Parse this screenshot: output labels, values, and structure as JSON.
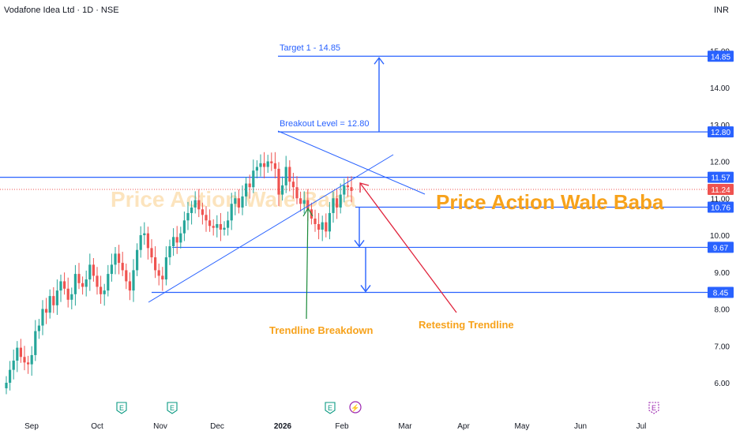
{
  "header": {
    "symbol": "Vodafone Idea Ltd · 1D · NSE",
    "currency": "INR"
  },
  "colors": {
    "up": "#26a69a",
    "down": "#ef5350",
    "level": "#2962ff",
    "orange": "#f7a21b",
    "green_arrow": "#1b8a3a",
    "red_arrow": "#e0243c"
  },
  "chart_data": {
    "type": "candlestick",
    "x_labels": [
      "Sep",
      "Oct",
      "Nov",
      "Dec",
      "2026",
      "Feb",
      "Mar",
      "Apr",
      "May",
      "Jun",
      "Jul"
    ],
    "y_ticks": [
      "6.00",
      "7.00",
      "8.00",
      "9.00",
      "10.00",
      "11.00",
      "12.00",
      "13.00",
      "14.00",
      "15.00"
    ],
    "ylim": [
      5.6,
      15.8
    ],
    "grid": false,
    "closes": [
      6.0,
      6.35,
      6.6,
      6.95,
      6.7,
      6.55,
      6.5,
      6.75,
      7.4,
      7.55,
      8.0,
      7.9,
      8.35,
      8.1,
      8.5,
      8.75,
      8.55,
      8.25,
      8.4,
      8.95,
      8.7,
      8.6,
      8.8,
      9.2,
      8.9,
      8.6,
      8.4,
      8.5,
      8.95,
      9.2,
      9.5,
      9.25,
      9.05,
      8.75,
      8.5,
      9.05,
      9.6,
      10.0,
      10.05,
      9.65,
      9.4,
      9.05,
      8.9,
      8.8,
      9.4,
      9.7,
      9.95,
      9.8,
      10.05,
      10.4,
      10.6,
      10.75,
      10.95,
      10.7,
      10.55,
      10.4,
      10.25,
      10.2,
      10.3,
      10.15,
      10.2,
      10.4,
      10.85,
      11.0,
      10.75,
      11.05,
      11.4,
      11.3,
      11.75,
      11.85,
      11.95,
      11.85,
      12.0,
      11.95,
      11.8,
      11.1,
      11.35,
      11.85,
      11.45,
      11.3,
      11.0,
      10.85,
      10.95,
      10.7,
      10.45,
      10.3,
      10.15,
      10.35,
      10.1,
      10.6,
      11.0,
      10.75,
      11.1,
      11.35,
      11.3,
      11.2
    ],
    "annotations": {
      "target_label": "Target 1 - 14.85",
      "breakout_label": "Breakout Level = 12.80",
      "trendline_breakdown": "Trendline Breakdown",
      "retesting": "Retesting Trendline",
      "brand": "Price Action Wale Baba",
      "watermark": "Price Action Wale Baba"
    },
    "levels": [
      {
        "value": 14.85,
        "label": "14.85",
        "kind": "level"
      },
      {
        "value": 12.8,
        "label": "12.80",
        "kind": "level"
      },
      {
        "value": 11.57,
        "label": "11.57",
        "kind": "level"
      },
      {
        "value": 11.24,
        "label": "11.24",
        "kind": "price"
      },
      {
        "value": 10.76,
        "label": "10.76",
        "kind": "level"
      },
      {
        "value": 9.67,
        "label": "9.67",
        "kind": "level"
      },
      {
        "value": 8.45,
        "label": "8.45",
        "kind": "level"
      }
    ],
    "events": [
      "E",
      "E",
      "E",
      "⚡",
      "E"
    ]
  }
}
